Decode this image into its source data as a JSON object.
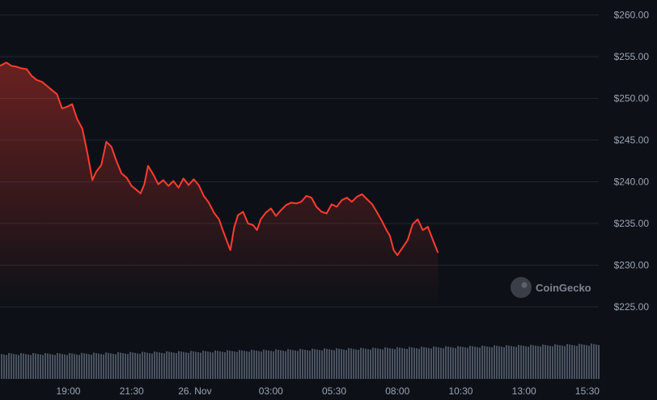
{
  "watermark": "CoinGecko",
  "colors": {
    "background": "#0d1117",
    "line": "#ff3b30",
    "volume": "#4a5361",
    "grid": "#1f2630"
  },
  "chart_data": {
    "type": "area",
    "ylim": [
      220,
      261
    ],
    "y_ticks": [
      {
        "value": 260,
        "label": "$260.00"
      },
      {
        "value": 255,
        "label": "$255.00"
      },
      {
        "value": 250,
        "label": "$250.00"
      },
      {
        "value": 245,
        "label": "$245.00"
      },
      {
        "value": 240,
        "label": "$240.00"
      },
      {
        "value": 235,
        "label": "$235.00"
      },
      {
        "value": 230,
        "label": "$230.00"
      },
      {
        "value": 225,
        "label": "$225.00"
      }
    ],
    "x_ticks": [
      {
        "t": 19.0,
        "label": "19:00"
      },
      {
        "t": 21.5,
        "label": "21:30"
      },
      {
        "t": 24.0,
        "label": "26. Nov"
      },
      {
        "t": 27.0,
        "label": "03:00"
      },
      {
        "t": 29.5,
        "label": "05:30"
      },
      {
        "t": 32.0,
        "label": "08:00"
      },
      {
        "t": 34.5,
        "label": "10:30"
      },
      {
        "t": 37.0,
        "label": "13:00"
      },
      {
        "t": 39.5,
        "label": "15:30"
      }
    ],
    "xlim": [
      16.3,
      39.95
    ],
    "x_unit": "hours, 26 Nov 00:00 = 24",
    "series": [
      {
        "values": [
          [
            16.3,
            253.9
          ],
          [
            16.55,
            254.3
          ],
          [
            16.75,
            253.9
          ],
          [
            16.95,
            253.8
          ],
          [
            17.15,
            253.6
          ],
          [
            17.35,
            253.5
          ],
          [
            17.55,
            252.7
          ],
          [
            17.75,
            252.2
          ],
          [
            17.95,
            252.0
          ],
          [
            18.15,
            251.5
          ],
          [
            18.35,
            251.0
          ],
          [
            18.55,
            250.5
          ],
          [
            18.75,
            248.8
          ],
          [
            18.95,
            249.0
          ],
          [
            19.15,
            249.3
          ],
          [
            19.35,
            247.5
          ],
          [
            19.55,
            246.4
          ],
          [
            19.75,
            243.5
          ],
          [
            19.95,
            240.2
          ],
          [
            20.1,
            241.2
          ],
          [
            20.3,
            242.0
          ],
          [
            20.5,
            244.8
          ],
          [
            20.7,
            244.2
          ],
          [
            20.9,
            242.5
          ],
          [
            21.1,
            241.0
          ],
          [
            21.3,
            240.5
          ],
          [
            21.5,
            239.5
          ],
          [
            21.7,
            239.0
          ],
          [
            21.85,
            238.6
          ],
          [
            22.0,
            239.7
          ],
          [
            22.15,
            241.9
          ],
          [
            22.35,
            240.9
          ],
          [
            22.55,
            239.7
          ],
          [
            22.75,
            240.2
          ],
          [
            22.95,
            239.5
          ],
          [
            23.15,
            240.1
          ],
          [
            23.35,
            239.3
          ],
          [
            23.55,
            240.4
          ],
          [
            23.75,
            239.6
          ],
          [
            23.95,
            240.3
          ],
          [
            24.15,
            239.6
          ],
          [
            24.35,
            238.3
          ],
          [
            24.55,
            237.5
          ],
          [
            24.75,
            236.3
          ],
          [
            24.95,
            235.5
          ],
          [
            25.1,
            234.2
          ],
          [
            25.25,
            233.0
          ],
          [
            25.4,
            231.8
          ],
          [
            25.55,
            234.5
          ],
          [
            25.7,
            236.0
          ],
          [
            25.9,
            236.4
          ],
          [
            26.1,
            235.0
          ],
          [
            26.3,
            234.8
          ],
          [
            26.45,
            234.2
          ],
          [
            26.6,
            235.5
          ],
          [
            26.8,
            236.3
          ],
          [
            27.0,
            236.8
          ],
          [
            27.2,
            235.9
          ],
          [
            27.4,
            236.6
          ],
          [
            27.6,
            237.2
          ],
          [
            27.8,
            237.5
          ],
          [
            28.0,
            237.4
          ],
          [
            28.2,
            237.6
          ],
          [
            28.4,
            238.3
          ],
          [
            28.6,
            238.1
          ],
          [
            28.8,
            237.0
          ],
          [
            29.0,
            236.4
          ],
          [
            29.2,
            236.2
          ],
          [
            29.4,
            237.3
          ],
          [
            29.6,
            237.0
          ],
          [
            29.8,
            237.8
          ],
          [
            30.0,
            238.1
          ],
          [
            30.2,
            237.6
          ],
          [
            30.4,
            238.2
          ],
          [
            30.6,
            238.5
          ],
          [
            30.8,
            237.9
          ],
          [
            31.0,
            237.3
          ],
          [
            31.2,
            236.3
          ],
          [
            31.4,
            235.2
          ],
          [
            31.55,
            234.3
          ],
          [
            31.7,
            233.5
          ],
          [
            31.85,
            231.8
          ],
          [
            32.0,
            231.2
          ],
          [
            32.2,
            232.1
          ],
          [
            32.4,
            233.0
          ],
          [
            32.6,
            234.9
          ],
          [
            32.8,
            235.5
          ],
          [
            33.0,
            234.2
          ],
          [
            33.2,
            234.6
          ],
          [
            33.4,
            233.0
          ],
          [
            33.6,
            231.5
          ]
        ]
      }
    ]
  }
}
